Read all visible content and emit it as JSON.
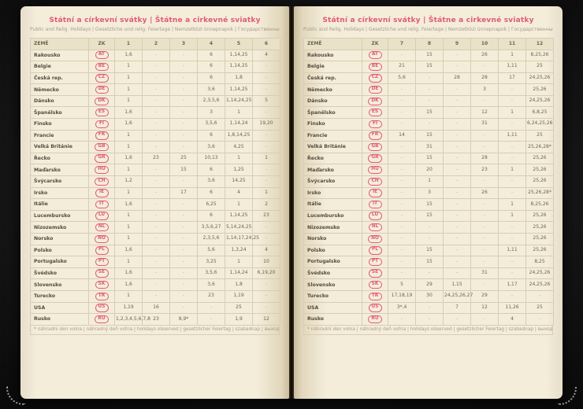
{
  "page": {
    "title": "Státní a církevní svátky | Štátne a cirkevné sviatky",
    "subtitle": "Public and Relig. Holidays | Gesetzliche und relig. Feiertage | Nemzetközi ünnepnapok | Государственные и церковные праздники",
    "footnote": "* náhradní den volna | náhradný deň voľna | holidays observed | gesetzlicher Feiertag | szabadnap | выходной день"
  },
  "table": {
    "country_header": "ZEMĚ",
    "code_header": "ZK",
    "left_months": [
      "1",
      "2",
      "3",
      "4",
      "5",
      "6"
    ],
    "right_months": [
      "7",
      "8",
      "9",
      "10",
      "11",
      "12"
    ]
  },
  "colors": {
    "accent": "#e05a74",
    "page": "#f4edda",
    "grid_line": "#d9cdb0",
    "header_fill": "#eae1c9",
    "text": "#6e6450"
  },
  "countries": [
    {
      "name": "Rakousko",
      "code": "AT",
      "months": [
        "1,6",
        "-",
        "-",
        "6",
        "1,14,25",
        "4",
        "-",
        "15",
        "-",
        "26",
        "1",
        "8,25,26"
      ]
    },
    {
      "name": "Belgie",
      "code": "BE",
      "months": [
        "1",
        "-",
        "-",
        "6",
        "1,14,25",
        "-",
        "21",
        "15",
        "-",
        "-",
        "1,11",
        "25"
      ]
    },
    {
      "name": "Česká rep.",
      "code": "CZ",
      "months": [
        "1",
        "-",
        "-",
        "6",
        "1,8",
        "-",
        "5,6",
        "-",
        "28",
        "28",
        "17",
        "24,25,26"
      ]
    },
    {
      "name": "Německo",
      "code": "DE",
      "months": [
        "1",
        "-",
        "-",
        "3,6",
        "1,14,25",
        "-",
        "-",
        "-",
        "-",
        "3",
        "-",
        "25,26"
      ]
    },
    {
      "name": "Dánsko",
      "code": "DK",
      "months": [
        "1",
        "-",
        "-",
        "2,3,5,6",
        "1,14,24,25",
        "5",
        "-",
        "-",
        "-",
        "-",
        "-",
        "24,25,26"
      ]
    },
    {
      "name": "Španělsko",
      "code": "ES",
      "months": [
        "1,6",
        "-",
        "-",
        "3",
        "1",
        "-",
        "-",
        "15",
        "-",
        "12",
        "1",
        "6,8,25"
      ]
    },
    {
      "name": "Finsko",
      "code": "FI",
      "months": [
        "1,6",
        "-",
        "-",
        "3,5,6",
        "1,14,24",
        "19,20",
        "-",
        "-",
        "-",
        "31",
        "-",
        "6,24,25,26"
      ]
    },
    {
      "name": "Francie",
      "code": "FR",
      "months": [
        "1",
        "-",
        "-",
        "6",
        "1,8,14,25",
        "-",
        "14",
        "15",
        "-",
        "-",
        "1,11",
        "25"
      ]
    },
    {
      "name": "Velká Británie",
      "code": "GB",
      "months": [
        "1",
        "-",
        "-",
        "3,6",
        "4,25",
        "-",
        "-",
        "31",
        "-",
        "-",
        "-",
        "25,26,28*"
      ]
    },
    {
      "name": "Řecko",
      "code": "GR",
      "months": [
        "1,6",
        "23",
        "25",
        "10,13",
        "1",
        "1",
        "-",
        "15",
        "-",
        "28",
        "-",
        "25,26"
      ]
    },
    {
      "name": "Maďarsko",
      "code": "HU",
      "months": [
        "1",
        "-",
        "15",
        "6",
        "1,25",
        "-",
        "-",
        "20",
        "-",
        "23",
        "1",
        "25,26"
      ]
    },
    {
      "name": "Švýcarsko",
      "code": "CH",
      "months": [
        "1,2",
        "-",
        "-",
        "3,6",
        "14,25",
        "-",
        "-",
        "1",
        "-",
        "-",
        "-",
        "25,26"
      ]
    },
    {
      "name": "Irsko",
      "code": "IE",
      "months": [
        "1",
        "-",
        "17",
        "6",
        "4",
        "1",
        "-",
        "3",
        "-",
        "26",
        "-",
        "25,26,28*"
      ]
    },
    {
      "name": "Itálie",
      "code": "IT",
      "months": [
        "1,6",
        "-",
        "-",
        "6,25",
        "1",
        "2",
        "-",
        "15",
        "-",
        "-",
        "1",
        "8,25,26"
      ]
    },
    {
      "name": "Lucembursko",
      "code": "LU",
      "months": [
        "1",
        "-",
        "-",
        "6",
        "1,14,25",
        "23",
        "-",
        "15",
        "-",
        "-",
        "1",
        "25,26"
      ]
    },
    {
      "name": "Nizozemsko",
      "code": "NL",
      "months": [
        "1",
        "-",
        "-",
        "3,5,6,27",
        "5,14,24,25",
        "-",
        "-",
        "-",
        "-",
        "-",
        "-",
        "25,26"
      ]
    },
    {
      "name": "Norsko",
      "code": "NO",
      "months": [
        "1",
        "-",
        "-",
        "2,3,5,6",
        "1,14,17,24,25",
        "-",
        "-",
        "-",
        "-",
        "-",
        "-",
        "25,26"
      ]
    },
    {
      "name": "Polsko",
      "code": "PL",
      "months": [
        "1,6",
        "-",
        "-",
        "5,6",
        "1,3,24",
        "4",
        "-",
        "15",
        "-",
        "-",
        "1,11",
        "25,26"
      ]
    },
    {
      "name": "Portugalsko",
      "code": "PT",
      "months": [
        "1",
        "-",
        "-",
        "3,25",
        "1",
        "10",
        "-",
        "15",
        "-",
        "-",
        "-",
        "8,25"
      ]
    },
    {
      "name": "Švédsko",
      "code": "SE",
      "months": [
        "1,6",
        "-",
        "-",
        "3,5,6",
        "1,14,24",
        "6,19,20",
        "-",
        "-",
        "-",
        "31",
        "-",
        "24,25,26"
      ]
    },
    {
      "name": "Slovensko",
      "code": "SK",
      "months": [
        "1,6",
        "-",
        "-",
        "3,6",
        "1,8",
        "-",
        "5",
        "29",
        "1,15",
        "-",
        "1,17",
        "24,25,26"
      ]
    },
    {
      "name": "Turecko",
      "code": "TR",
      "months": [
        "1",
        "-",
        "-",
        "23",
        "1,19",
        "-",
        "17,18,19",
        "30",
        "24,25,26,27",
        "29",
        "-",
        "-"
      ]
    },
    {
      "name": "USA",
      "code": "US",
      "months": [
        "1,19",
        "16",
        "-",
        "-",
        "25",
        "-",
        "3*,4",
        "-",
        "7",
        "12",
        "11,26",
        "25"
      ]
    },
    {
      "name": "Rusko",
      "code": "RU",
      "months": [
        "1,2,3,4,5,6,7,8",
        "23",
        "8,9*",
        "-",
        "1,9",
        "12",
        "-",
        "-",
        "-",
        "-",
        "4",
        "-"
      ]
    }
  ]
}
